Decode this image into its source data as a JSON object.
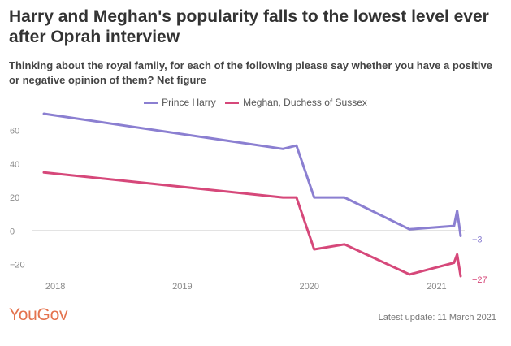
{
  "header": {
    "title": "Harry and Meghan's popularity falls to the lowest level ever after Oprah interview",
    "subtitle": "Thinking about the royal family, for each of the following please say whether you have a positive or negative opinion of them? Net figure"
  },
  "footer": {
    "brand": "YouGov",
    "update": "Latest update: 11 March 2021"
  },
  "colors": {
    "harry": "#8b7fd1",
    "meghan": "#d6487a",
    "brand": "#e4734e"
  },
  "chart_data": {
    "type": "line",
    "x_axis_type": "date",
    "xlim": [
      "2017-11-01",
      "2021-04-01"
    ],
    "ylim": [
      -27,
      70
    ],
    "y_ticks": [
      -20,
      0,
      20,
      40,
      60
    ],
    "y_tick_labels": [
      "−20",
      "0",
      "20",
      "40",
      "60"
    ],
    "x_ticks": [
      "2018-01-01",
      "2019-01-01",
      "2020-01-01",
      "2021-01-01"
    ],
    "x_tick_labels": [
      "2018",
      "2019",
      "2020",
      "2021"
    ],
    "grid": false,
    "zero_line": true,
    "legend_position": "top-center",
    "series": [
      {
        "name": "Prince Harry",
        "color": "#8b7fd1",
        "end_label": "−3",
        "points": [
          [
            "2017-11-29",
            70
          ],
          [
            "2019-10-17",
            49
          ],
          [
            "2019-11-25",
            51
          ],
          [
            "2020-01-15",
            20
          ],
          [
            "2020-04-11",
            20
          ],
          [
            "2020-10-15",
            1
          ],
          [
            "2021-02-20",
            3
          ],
          [
            "2021-03-01",
            12
          ],
          [
            "2021-03-11",
            -3
          ]
        ]
      },
      {
        "name": "Meghan, Duchess of Sussex",
        "color": "#d6487a",
        "end_label": "−27",
        "points": [
          [
            "2017-11-29",
            35
          ],
          [
            "2019-10-17",
            20
          ],
          [
            "2019-11-25",
            20
          ],
          [
            "2020-01-15",
            -11
          ],
          [
            "2020-04-11",
            -8
          ],
          [
            "2020-10-15",
            -26
          ],
          [
            "2021-02-20",
            -19
          ],
          [
            "2021-03-01",
            -14
          ],
          [
            "2021-03-11",
            -27
          ]
        ]
      }
    ]
  }
}
